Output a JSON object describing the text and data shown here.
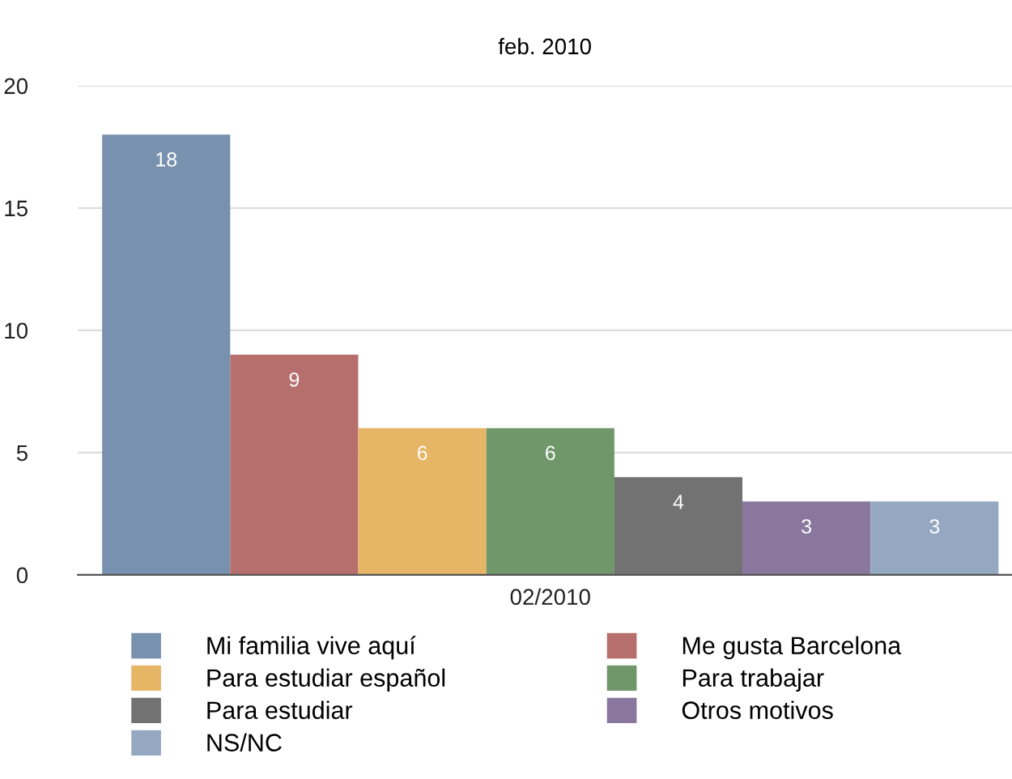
{
  "chart_data": {
    "type": "bar",
    "title": "feb. 2010",
    "categories": [
      "02/2010"
    ],
    "series": [
      {
        "name": "Mi familia vive aquí",
        "color": "#7891ae",
        "values": [
          18
        ]
      },
      {
        "name": "Me gusta Barcelona",
        "color": "#b66f6d",
        "values": [
          9
        ]
      },
      {
        "name": "Para estudiar español",
        "color": "#e6b566",
        "values": [
          6
        ]
      },
      {
        "name": "Para trabajar",
        "color": "#6f9769",
        "values": [
          6
        ]
      },
      {
        "name": "Para estudiar",
        "color": "#727272",
        "values": [
          4
        ]
      },
      {
        "name": "Otros motivos",
        "color": "#8a779e",
        "values": [
          3
        ]
      },
      {
        "name": "NS/NC",
        "color": "#95a8c2",
        "values": [
          3
        ]
      }
    ],
    "ylim": [
      0,
      20
    ],
    "yticks": [
      0,
      5,
      10,
      15,
      20
    ],
    "grid": "y",
    "legend": "bottom",
    "data_labels": true
  }
}
